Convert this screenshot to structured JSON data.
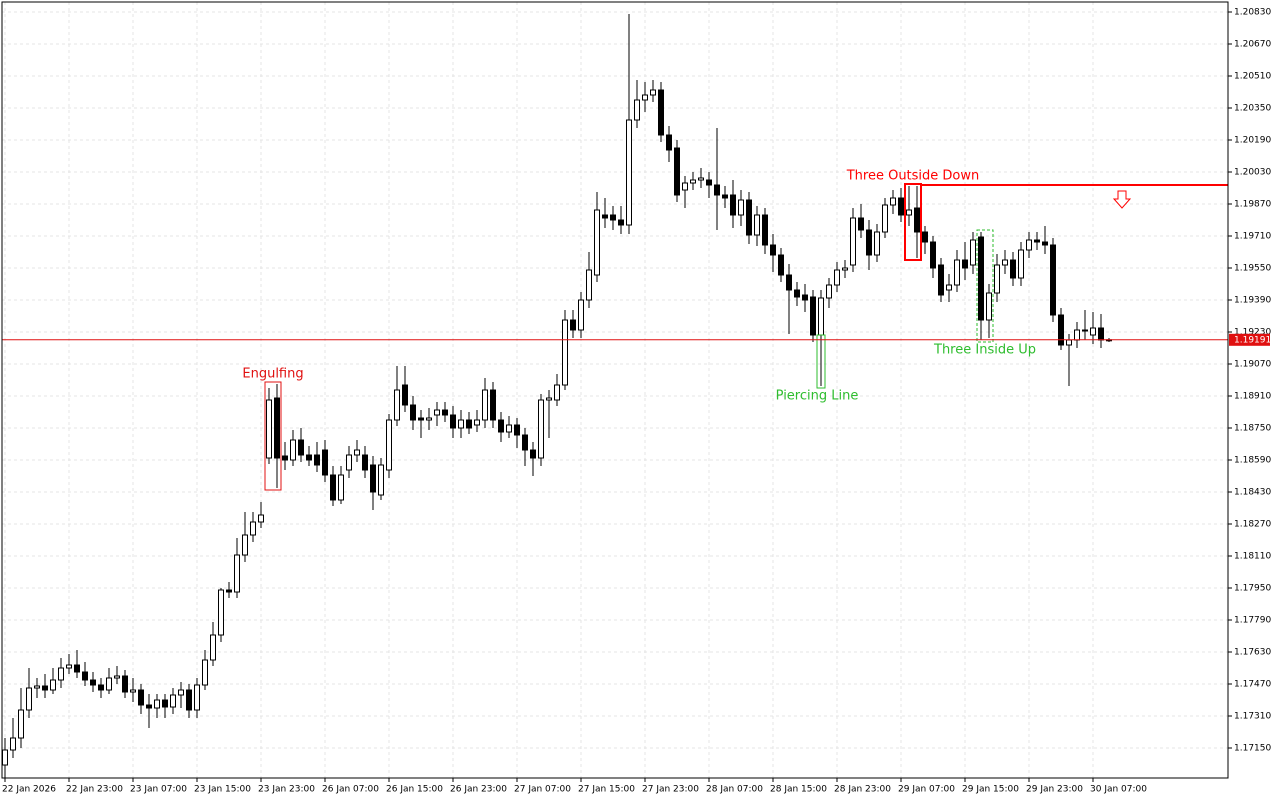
{
  "chart_data": {
    "type": "candlestick",
    "categories": [
      "22 Jan 2026",
      null,
      null,
      null,
      null,
      null,
      null,
      null,
      "22 Jan 23:00",
      null,
      null,
      null,
      null,
      null,
      null,
      null,
      "23 Jan 07:00",
      null,
      null,
      null,
      null,
      null,
      null,
      null,
      "23 Jan 15:00",
      null,
      null,
      null,
      null,
      null,
      null,
      null,
      "23 Jan 23:00",
      null,
      null,
      null,
      null,
      null,
      null,
      null,
      "26 Jan 07:00",
      null,
      null,
      null,
      null,
      null,
      null,
      null,
      "26 Jan 15:00",
      null,
      null,
      null,
      null,
      null,
      null,
      null,
      "26 Jan 23:00",
      null,
      null,
      null,
      null,
      null,
      null,
      null,
      "27 Jan 07:00",
      null,
      null,
      null,
      null,
      null,
      null,
      null,
      "27 Jan 15:00",
      null,
      null,
      null,
      null,
      null,
      null,
      null,
      "27 Jan 23:00",
      null,
      null,
      null,
      null,
      null,
      null,
      null,
      "28 Jan 07:00",
      null,
      null,
      null,
      null,
      null,
      null,
      null,
      "28 Jan 15:00",
      null,
      null,
      null,
      null,
      null,
      null,
      null,
      "28 Jan 23:00",
      null,
      null,
      null,
      null,
      null,
      null,
      null,
      "29 Jan 07:00",
      null,
      null,
      null,
      null,
      null,
      null,
      null,
      "29 Jan 15:00",
      null,
      null,
      null,
      null,
      null,
      null,
      null,
      "29 Jan 23:00",
      null,
      null,
      null,
      null,
      null,
      null,
      null,
      "30 Jan 07:00",
      null,
      null
    ],
    "open": [
      1.17065,
      1.1714,
      1.172,
      1.1734,
      1.1745,
      1.1746,
      1.1744,
      1.1749,
      1.1755,
      1.17565,
      1.1753,
      1.1749,
      1.17465,
      1.1744,
      1.175,
      1.1751,
      1.1743,
      1.1744,
      1.17365,
      1.1735,
      1.1739,
      1.17355,
      1.17415,
      1.1744,
      1.1734,
      1.17465,
      1.1759,
      1.17715,
      1.1794,
      1.1793,
      1.18115,
      1.18215,
      1.1828,
      1.186,
      1.189,
      1.1861,
      1.1859,
      1.1869,
      1.18615,
      1.18615,
      1.1864,
      1.18515,
      1.1839,
      1.1854,
      1.18615,
      1.18615,
      1.18565,
      1.18415,
      1.1854,
      1.1879,
      1.18965,
      1.18865,
      1.188,
      1.1879,
      1.18815,
      1.1884,
      1.18815,
      1.1875,
      1.1879,
      1.18765,
      1.1879,
      1.1894,
      1.1879,
      1.1873,
      1.18765,
      1.18715,
      1.1864,
      1.186,
      1.1889,
      1.1889,
      1.18965,
      1.1929,
      1.1924,
      1.1939,
      1.19515,
      1.19815,
      1.19815,
      1.1979,
      1.19765,
      1.2029,
      1.2039,
      1.20415,
      1.2044,
      1.20215,
      1.2015,
      1.1994,
      1.19975,
      1.1999,
      1.1999,
      1.19965,
      1.19915,
      1.19915,
      1.19815,
      1.1989,
      1.19715,
      1.19815,
      1.19665,
      1.19615,
      1.19515,
      1.1944,
      1.19415,
      1.19405,
      1.19215,
      1.194,
      1.19465,
      1.1954,
      1.19565,
      1.198,
      1.1974,
      1.19615,
      1.1973,
      1.19865,
      1.199,
      1.19815,
      1.1985,
      1.1973,
      1.1968,
      1.19565,
      1.1944,
      1.19465,
      1.1959,
      1.19565,
      1.19705,
      1.1929,
      1.19425,
      1.19565,
      1.1959,
      1.195,
      1.1964,
      1.1969,
      1.1968,
      1.19665,
      1.19315,
      1.19165,
      1.1919,
      1.1924,
      1.19215,
      1.1925,
      1.1919
    ],
    "high": [
      1.172,
      1.173,
      1.1745,
      1.1755,
      1.175,
      1.1752,
      1.1755,
      1.176,
      1.1762,
      1.1764,
      1.1758,
      1.1753,
      1.175,
      1.1755,
      1.1756,
      1.1754,
      1.175,
      1.1747,
      1.1742,
      1.1742,
      1.1742,
      1.1745,
      1.1748,
      1.1747,
      1.175,
      1.1764,
      1.1778,
      1.1795,
      1.1798,
      1.182,
      1.1833,
      1.1833,
      1.1838,
      1.1895,
      1.1897,
      1.1868,
      1.1874,
      1.1875,
      1.1866,
      1.1868,
      1.1869,
      1.1856,
      1.1856,
      1.1866,
      1.1869,
      1.1866,
      1.1861,
      1.186,
      1.1882,
      1.1906,
      1.1906,
      1.1891,
      1.1884,
      1.1885,
      1.1888,
      1.1888,
      1.1886,
      1.1884,
      1.1883,
      1.1884,
      1.19,
      1.1898,
      1.1883,
      1.1881,
      1.188,
      1.1875,
      1.1868,
      1.1892,
      1.1894,
      1.1902,
      1.1934,
      1.1934,
      1.1943,
      1.1963,
      1.1993,
      1.199,
      1.1986,
      1.1986,
      1.2082,
      1.2049,
      1.2048,
      1.2049,
      1.2048,
      1.2026,
      1.2019,
      1.2001,
      1.2003,
      1.2005,
      1.2003,
      1.2025,
      1.1996,
      1.1999,
      1.1994,
      1.1993,
      1.1986,
      1.1985,
      1.1972,
      1.1965,
      1.1957,
      1.1948,
      1.1947,
      1.1944,
      1.1944,
      1.195,
      1.1958,
      1.1959,
      1.1985,
      1.1987,
      1.1979,
      1.1977,
      1.199,
      1.1994,
      1.1995,
      1.1996,
      1.1996,
      1.1976,
      1.1971,
      1.196,
      1.1952,
      1.1964,
      1.1968,
      1.1973,
      1.1973,
      1.1947,
      1.1962,
      1.1964,
      1.1963,
      1.1968,
      1.1973,
      1.1973,
      1.1976,
      1.197,
      1.1935,
      1.1922,
      1.1928,
      1.1934,
      1.1933,
      1.1932,
      1.192
    ],
    "low": [
      1.17,
      1.171,
      1.1715,
      1.173,
      1.174,
      1.174,
      1.1742,
      1.1745,
      1.1752,
      1.175,
      1.1746,
      1.1743,
      1.174,
      1.1742,
      1.1747,
      1.174,
      1.1738,
      1.1732,
      1.1725,
      1.173,
      1.173,
      1.1732,
      1.1735,
      1.173,
      1.173,
      1.1744,
      1.1756,
      1.1768,
      1.179,
      1.179,
      1.1808,
      1.1818,
      1.1825,
      1.1857,
      1.1845,
      1.1854,
      1.1856,
      1.1858,
      1.1856,
      1.1853,
      1.1848,
      1.1836,
      1.1837,
      1.185,
      1.1858,
      1.185,
      1.1834,
      1.1839,
      1.185,
      1.1876,
      1.1883,
      1.1874,
      1.187,
      1.1874,
      1.1876,
      1.1878,
      1.187,
      1.187,
      1.1872,
      1.1873,
      1.1875,
      1.1875,
      1.1868,
      1.187,
      1.1865,
      1.1856,
      1.1851,
      1.1856,
      1.187,
      1.1886,
      1.1894,
      1.192,
      1.192,
      1.1935,
      1.1948,
      1.1975,
      1.1974,
      1.1972,
      1.1972,
      1.2025,
      1.2033,
      1.2038,
      1.2018,
      1.2008,
      1.1988,
      1.1985,
      1.1994,
      1.1995,
      1.199,
      1.1974,
      1.1985,
      1.1975,
      1.1976,
      1.1967,
      1.1966,
      1.1962,
      1.1953,
      1.1948,
      1.1922,
      1.1936,
      1.1933,
      1.1918,
      1.1896,
      1.1935,
      1.1943,
      1.195,
      1.1953,
      1.197,
      1.1954,
      1.1958,
      1.197,
      1.1982,
      1.1978,
      1.1976,
      1.196,
      1.1962,
      1.195,
      1.1938,
      1.1938,
      1.1943,
      1.1949,
      1.1952,
      1.1919,
      1.192,
      1.1938,
      1.1952,
      1.1946,
      1.1946,
      1.196,
      1.1964,
      1.1962,
      1.1928,
      1.1914,
      1.1896,
      1.1915,
      1.1919,
      1.1917,
      1.1915,
      1.1918
    ],
    "close": [
      1.1714,
      1.172,
      1.1734,
      1.1745,
      1.1746,
      1.1744,
      1.1749,
      1.1755,
      1.17565,
      1.1753,
      1.1749,
      1.17465,
      1.1744,
      1.175,
      1.1751,
      1.1743,
      1.1744,
      1.17365,
      1.1735,
      1.1739,
      1.17355,
      1.17415,
      1.1744,
      1.1734,
      1.17465,
      1.1759,
      1.17715,
      1.1794,
      1.1793,
      1.18115,
      1.18215,
      1.1828,
      1.18315,
      1.1889,
      1.186,
      1.1859,
      1.1869,
      1.18615,
      1.1859,
      1.18565,
      1.18515,
      1.1839,
      1.18515,
      1.18615,
      1.1864,
      1.1854,
      1.1843,
      1.18565,
      1.1879,
      1.1894,
      1.18865,
      1.1879,
      1.1879,
      1.188,
      1.1884,
      1.18815,
      1.1875,
      1.1879,
      1.1875,
      1.1879,
      1.1894,
      1.1879,
      1.1873,
      1.18765,
      1.18715,
      1.1864,
      1.186,
      1.1889,
      1.189,
      1.18965,
      1.1929,
      1.1924,
      1.1939,
      1.1954,
      1.1984,
      1.198,
      1.1979,
      1.19765,
      1.2029,
      1.2039,
      1.20415,
      1.2044,
      1.20215,
      1.2014,
      1.19915,
      1.19975,
      1.1999,
      1.2,
      1.19965,
      1.19915,
      1.199,
      1.19815,
      1.1989,
      1.19715,
      1.19815,
      1.19665,
      1.19615,
      1.19515,
      1.1944,
      1.19405,
      1.1939,
      1.19215,
      1.194,
      1.19465,
      1.1954,
      1.1955,
      1.198,
      1.1974,
      1.19615,
      1.1973,
      1.19865,
      1.199,
      1.19815,
      1.1984,
      1.1973,
      1.1968,
      1.1955,
      1.19415,
      1.19465,
      1.1959,
      1.1955,
      1.1969,
      1.1929,
      1.19425,
      1.19565,
      1.1959,
      1.195,
      1.1964,
      1.1969,
      1.1968,
      1.19665,
      1.19315,
      1.19165,
      1.1919,
      1.1924,
      1.1924,
      1.1925,
      1.1919,
      1.19191
    ],
    "ylim": [
      1.17,
      1.2088
    ],
    "yticks": [
      {
        "value": 1.2083,
        "label": "1.20830"
      },
      {
        "value": 1.2067,
        "label": "1.20670"
      },
      {
        "value": 1.2051,
        "label": "1.20510"
      },
      {
        "value": 1.2035,
        "label": "1.20350"
      },
      {
        "value": 1.2019,
        "label": "1.20190"
      },
      {
        "value": 1.2003,
        "label": "1.20030"
      },
      {
        "value": 1.1987,
        "label": "1.19870"
      },
      {
        "value": 1.1971,
        "label": "1.19710"
      },
      {
        "value": 1.1955,
        "label": "1.19550"
      },
      {
        "value": 1.1939,
        "label": "1.19390"
      },
      {
        "value": 1.1923,
        "label": "1.19230"
      },
      {
        "value": 1.1907,
        "label": "1.19070"
      },
      {
        "value": 1.1891,
        "label": "1.18910"
      },
      {
        "value": 1.1875,
        "label": "1.18750"
      },
      {
        "value": 1.1859,
        "label": "1.18590"
      },
      {
        "value": 1.1843,
        "label": "1.18430"
      },
      {
        "value": 1.1827,
        "label": "1.18270"
      },
      {
        "value": 1.1811,
        "label": "1.18110"
      },
      {
        "value": 1.1795,
        "label": "1.17950"
      },
      {
        "value": 1.1779,
        "label": "1.17790"
      },
      {
        "value": 1.1763,
        "label": "1.17630"
      },
      {
        "value": 1.1747,
        "label": "1.17470"
      },
      {
        "value": 1.1731,
        "label": "1.17310"
      },
      {
        "value": 1.1715,
        "label": "1.17150"
      }
    ],
    "grid": true,
    "last_price": 1.19191,
    "last_price_color": "#e01010",
    "level": 1.19965,
    "level_color": "#ff0000",
    "annotations": [
      {
        "text": "Engulfing",
        "color": "#e01010"
      },
      {
        "text": "Piercing Line",
        "color": "#2ebd2e"
      },
      {
        "text": "Three Outside Down",
        "color": "#ff0000"
      },
      {
        "text": "Three Inside Up",
        "color": "#2ebd2e"
      }
    ]
  }
}
